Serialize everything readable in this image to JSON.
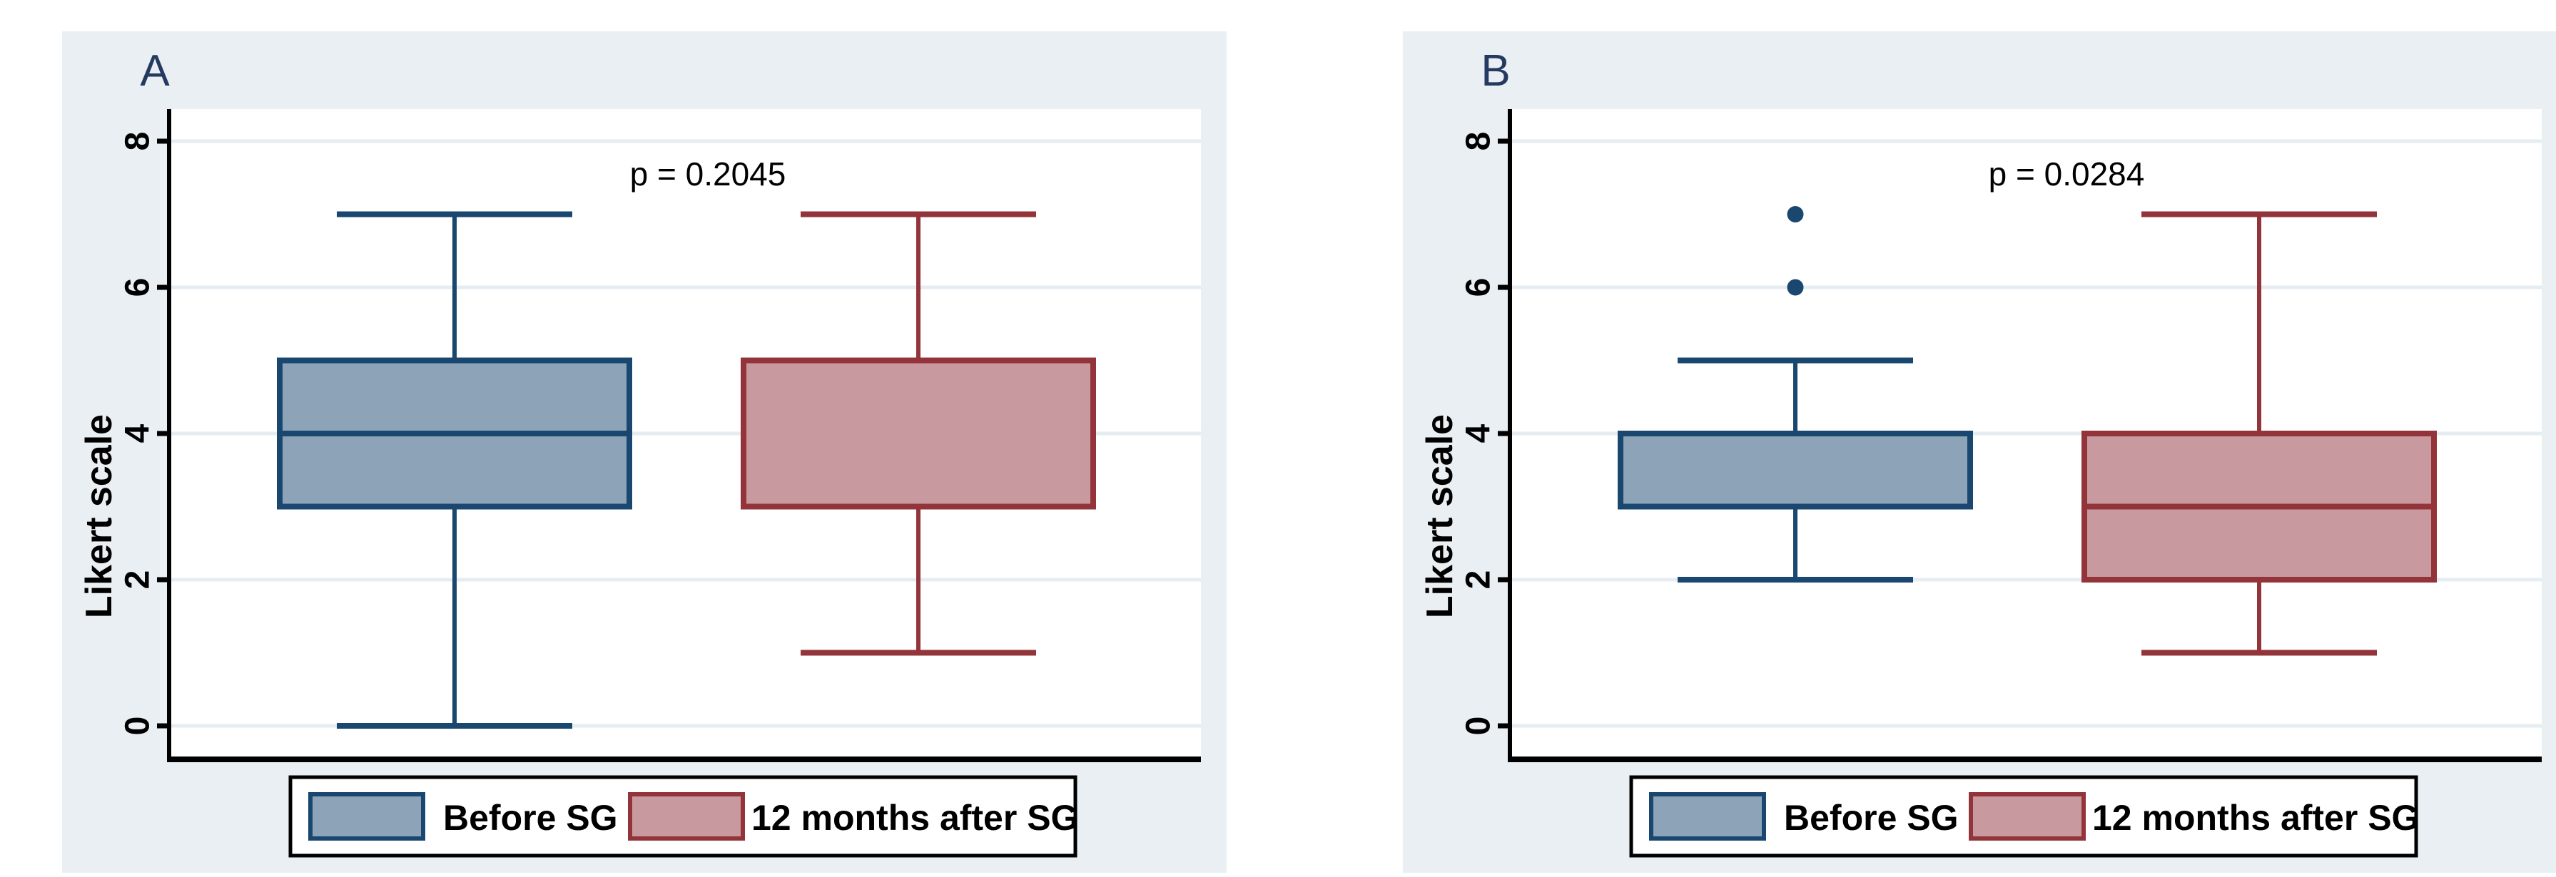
{
  "figure": {
    "description": "Two-panel Stata-style box plot figure comparing Likert scale scores before and 12 months after SG",
    "background_color": "#ffffff",
    "panel_background_color": "#e9eff2",
    "plot_background_color": "#ffffff",
    "gridline_color": "#e6edf2",
    "axis_color": "#000000",
    "panel_label_color": "#243a60",
    "text_color": "#000000"
  },
  "series_styles": {
    "before": {
      "stroke": "#1a476f",
      "fill": "#8da3b8"
    },
    "after": {
      "stroke": "#93343a",
      "fill": "#c89aa0"
    }
  },
  "legend": {
    "items": [
      {
        "key": "before",
        "label": "Before SG"
      },
      {
        "key": "after",
        "label": "12 months after SG"
      }
    ]
  },
  "chart_data": [
    {
      "type": "box",
      "panel_label": "A",
      "annotation": "p = 0.2045",
      "ylabel": "Likert scale",
      "yticks": [
        0,
        2,
        4,
        6,
        8
      ],
      "ylim": [
        -0.45,
        8.45
      ],
      "grid": true,
      "legend_position": "bottom",
      "series": [
        {
          "name": "Before SG",
          "style_key": "before",
          "whisker_low": 0,
          "q1": 3,
          "median": 4,
          "q3": 5,
          "whisker_high": 7,
          "outliers": []
        },
        {
          "name": "12 months after SG",
          "style_key": "after",
          "whisker_low": 1,
          "q1": 3,
          "median": null,
          "q3": 5,
          "whisker_high": 7,
          "outliers": []
        }
      ]
    },
    {
      "type": "box",
      "panel_label": "B",
      "annotation": "p = 0.0284",
      "ylabel": "Likert scale",
      "yticks": [
        0,
        2,
        4,
        6,
        8
      ],
      "ylim": [
        -0.45,
        8.45
      ],
      "grid": true,
      "legend_position": "bottom",
      "series": [
        {
          "name": "Before SG",
          "style_key": "before",
          "whisker_low": 2,
          "q1": 3,
          "median": null,
          "q3": 4,
          "whisker_high": 5,
          "outliers": [
            6,
            7
          ]
        },
        {
          "name": "12 months after SG",
          "style_key": "after",
          "whisker_low": 1,
          "q1": 2,
          "median": 3,
          "q3": 4,
          "whisker_high": 7,
          "outliers": []
        }
      ]
    }
  ]
}
